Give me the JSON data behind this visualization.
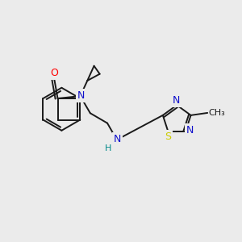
{
  "background_color": "#ebebeb",
  "bond_color": "#1a1a1a",
  "figsize": [
    3.0,
    3.0
  ],
  "dpi": 100,
  "atom_colors": {
    "O": "#ff0000",
    "N": "#1010cc",
    "S": "#cccc00",
    "C": "#1a1a1a",
    "H": "#008888"
  },
  "lw": 1.4
}
